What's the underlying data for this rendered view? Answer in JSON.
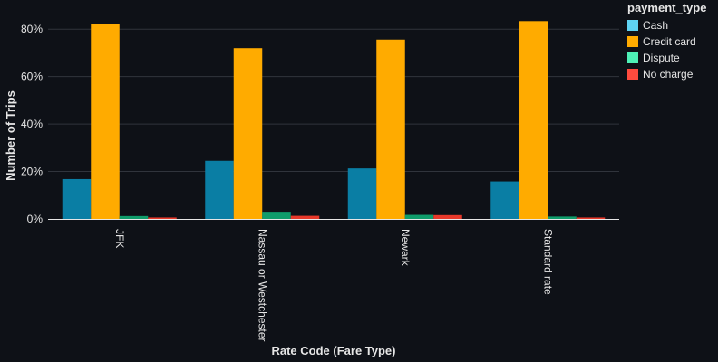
{
  "chart_data": {
    "type": "bar",
    "categories": [
      "JFK",
      "Nassau or Westchester",
      "Newark",
      "Standard rate"
    ],
    "series": [
      {
        "name": "Cash",
        "values": [
          16.8,
          24.5,
          21.3,
          15.8
        ],
        "color": "#0a7ea4"
      },
      {
        "name": "Credit card",
        "values": [
          82.2,
          72.0,
          75.6,
          83.4
        ],
        "color": "#ffab00"
      },
      {
        "name": "Dispute",
        "values": [
          1.2,
          3.0,
          1.7,
          1.0
        ],
        "color": "#0f9d6b"
      },
      {
        "name": "No charge",
        "values": [
          0.6,
          1.3,
          1.6,
          0.6
        ],
        "color": "#e8392a"
      }
    ],
    "legend_colors": [
      "#5fd3f3",
      "#ffab00",
      "#4ef0b6",
      "#ff4b3e"
    ],
    "xlabel": "Rate Code (Fare Type)",
    "ylabel": "Number of Trips",
    "ylim": [
      0,
      90
    ],
    "yticks": [
      0,
      20,
      40,
      60,
      80
    ],
    "ytick_labels": [
      "0%",
      "20%",
      "40%",
      "60%",
      "80%"
    ],
    "legend_title": "payment_type",
    "legend_position": "top-right",
    "grid": true
  }
}
